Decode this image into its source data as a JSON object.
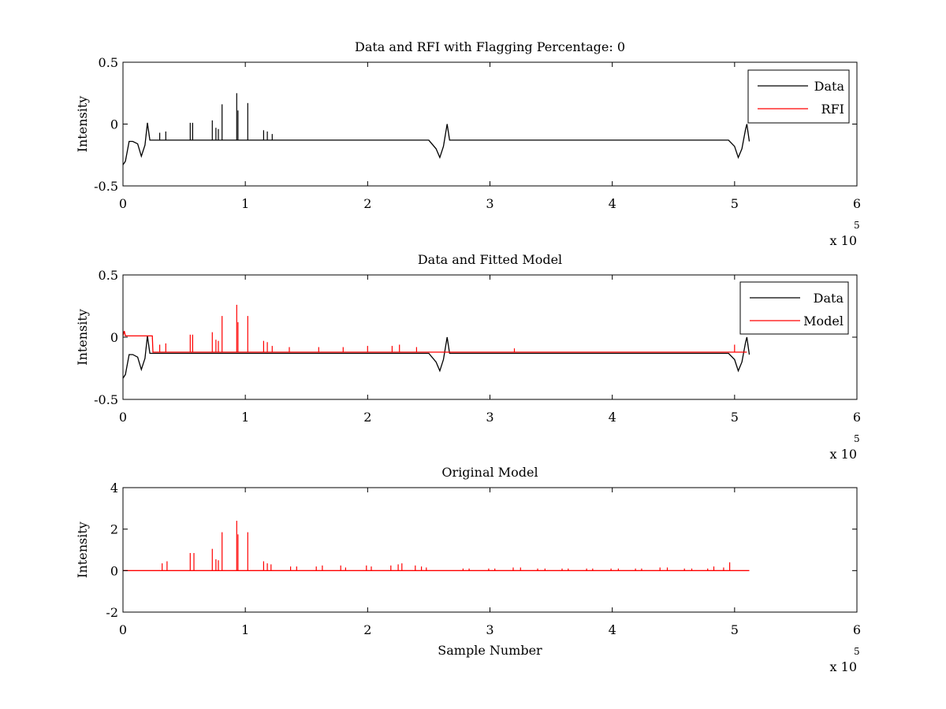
{
  "figure": {
    "background": "#ffffff",
    "colors": {
      "data": "#000000",
      "rfi": "#ff0000",
      "model": "#ff0000",
      "axes": "#000000"
    }
  },
  "chart_data": [
    {
      "type": "line",
      "title": "Data and RFI with Flagging Percentage: 0",
      "xlabel": "",
      "ylabel": "Intensity",
      "xlim": [
        0,
        600000
      ],
      "ylim": [
        -0.5,
        0.5
      ],
      "xticks": [
        0,
        100000,
        200000,
        300000,
        400000,
        500000,
        600000
      ],
      "xtick_labels": [
        "0",
        "1",
        "2",
        "3",
        "4",
        "5",
        "6"
      ],
      "yticks": [
        -0.5,
        0,
        0.5
      ],
      "ytick_labels": [
        "-0.5",
        "0",
        "0.5"
      ],
      "x_multiplier_label": "x 10",
      "x_multiplier_exponent": "5",
      "legend": {
        "position": "top-right",
        "entries": [
          "Data",
          "RFI"
        ]
      },
      "grid": false,
      "series": [
        {
          "name": "Data",
          "color": "#000000",
          "x": [
            0,
            2000,
            5000,
            8000,
            12000,
            15000,
            18000,
            20000,
            22000,
            25000,
            60000,
            120000,
            200000,
            250000,
            256000,
            259000,
            262000,
            265000,
            267000,
            270000,
            350000,
            420000,
            495000,
            500000,
            503000,
            506000,
            509000,
            510000,
            512000
          ],
          "y": [
            -0.33,
            -0.3,
            -0.14,
            -0.14,
            -0.16,
            -0.26,
            -0.17,
            0.01,
            -0.13,
            -0.13,
            -0.13,
            -0.13,
            -0.13,
            -0.13,
            -0.2,
            -0.27,
            -0.18,
            0.0,
            -0.13,
            -0.13,
            -0.13,
            -0.13,
            -0.13,
            -0.18,
            -0.27,
            -0.2,
            -0.04,
            0.0,
            -0.14
          ],
          "spikes": {
            "x": [
              30000,
              35000,
              55000,
              57000,
              73000,
              76000,
              78000,
              81000,
              93000,
              94000,
              102000,
              115000,
              118000,
              122000
            ],
            "y": [
              -0.07,
              -0.06,
              0.01,
              0.01,
              0.03,
              -0.03,
              -0.04,
              0.16,
              0.25,
              0.11,
              0.17,
              -0.05,
              -0.06,
              -0.08
            ]
          }
        },
        {
          "name": "RFI",
          "color": "#ff0000",
          "x": [],
          "y": []
        }
      ]
    },
    {
      "type": "line",
      "title": "Data and Fitted Model",
      "xlabel": "",
      "ylabel": "Intensity",
      "xlim": [
        0,
        600000
      ],
      "ylim": [
        -0.5,
        0.5
      ],
      "xticks": [
        0,
        100000,
        200000,
        300000,
        400000,
        500000,
        600000
      ],
      "xtick_labels": [
        "0",
        "1",
        "2",
        "3",
        "4",
        "5",
        "6"
      ],
      "yticks": [
        -0.5,
        0,
        0.5
      ],
      "ytick_labels": [
        "-0.5",
        "0",
        "0.5"
      ],
      "x_multiplier_label": "x 10",
      "x_multiplier_exponent": "5",
      "legend": {
        "position": "top-right",
        "entries": [
          "Data",
          "Model"
        ]
      },
      "grid": false,
      "series": [
        {
          "name": "Data",
          "color": "#000000",
          "x": [
            0,
            2000,
            5000,
            8000,
            12000,
            15000,
            18000,
            20000,
            22000,
            25000,
            60000,
            120000,
            200000,
            250000,
            256000,
            259000,
            262000,
            265000,
            267000,
            270000,
            350000,
            420000,
            495000,
            500000,
            503000,
            506000,
            509000,
            510000,
            512000
          ],
          "y": [
            -0.33,
            -0.3,
            -0.14,
            -0.14,
            -0.16,
            -0.26,
            -0.17,
            0.01,
            -0.13,
            -0.13,
            -0.13,
            -0.13,
            -0.13,
            -0.13,
            -0.2,
            -0.27,
            -0.18,
            0.0,
            -0.13,
            -0.13,
            -0.13,
            -0.13,
            -0.13,
            -0.18,
            -0.27,
            -0.2,
            -0.04,
            0.0,
            -0.14
          ]
        },
        {
          "name": "Model",
          "color": "#ff0000",
          "x": [
            0,
            1000,
            2000,
            24000,
            24500,
            26000,
            510000
          ],
          "y": [
            0.01,
            0.05,
            0.01,
            0.01,
            -0.12,
            -0.12,
            -0.12
          ],
          "spikes": {
            "x": [
              30000,
              35000,
              55000,
              57000,
              73000,
              76000,
              78000,
              81000,
              93000,
              94000,
              102000,
              115000,
              118000,
              122000,
              136000,
              160000,
              180000,
              200000,
              220000,
              226000,
              240000,
              320000,
              500000
            ],
            "y": [
              -0.06,
              -0.05,
              0.02,
              0.02,
              0.04,
              -0.02,
              -0.03,
              0.17,
              0.26,
              0.12,
              0.17,
              -0.03,
              -0.04,
              -0.07,
              -0.08,
              -0.08,
              -0.08,
              -0.07,
              -0.07,
              -0.06,
              -0.08,
              -0.09,
              -0.06
            ]
          }
        }
      ]
    },
    {
      "type": "line",
      "title": "Original Model",
      "xlabel": "Sample Number",
      "ylabel": "Intensity",
      "xlim": [
        0,
        600000
      ],
      "ylim": [
        -2,
        4
      ],
      "xticks": [
        0,
        100000,
        200000,
        300000,
        400000,
        500000,
        600000
      ],
      "xtick_labels": [
        "0",
        "1",
        "2",
        "3",
        "4",
        "5",
        "6"
      ],
      "yticks": [
        -2,
        0,
        2,
        4
      ],
      "ytick_labels": [
        "-2",
        "0",
        "2",
        "4"
      ],
      "x_multiplier_label": "x 10",
      "x_multiplier_exponent": "5",
      "grid": false,
      "series": [
        {
          "name": "Model",
          "color": "#ff0000",
          "x": [
            0,
            512000
          ],
          "y": [
            0,
            0
          ],
          "spikes": {
            "x": [
              32000,
              36000,
              55000,
              58000,
              73000,
              76000,
              78000,
              81000,
              93000,
              94000,
              102000,
              115000,
              118000,
              121000,
              137000,
              142000,
              158000,
              163000,
              178000,
              182000,
              199000,
              203000,
              219000,
              225000,
              228000,
              239000,
              244000,
              248000,
              278000,
              283000,
              299000,
              304000,
              319000,
              325000,
              339000,
              345000,
              359000,
              364000,
              379000,
              384000,
              399000,
              405000,
              419000,
              424000,
              439000,
              445000,
              459000,
              465000,
              478000,
              483000,
              491000,
              496000
            ],
            "y": [
              0.35,
              0.45,
              0.85,
              0.85,
              1.05,
              0.55,
              0.5,
              1.85,
              2.4,
              1.75,
              1.85,
              0.45,
              0.35,
              0.3,
              0.2,
              0.2,
              0.2,
              0.25,
              0.25,
              0.15,
              0.25,
              0.2,
              0.25,
              0.3,
              0.35,
              0.25,
              0.2,
              0.15,
              0.1,
              0.1,
              0.1,
              0.1,
              0.15,
              0.15,
              0.1,
              0.1,
              0.1,
              0.1,
              0.1,
              0.1,
              0.1,
              0.1,
              0.1,
              0.1,
              0.15,
              0.15,
              0.1,
              0.1,
              0.1,
              0.2,
              0.15,
              0.4
            ]
          }
        }
      ]
    }
  ]
}
